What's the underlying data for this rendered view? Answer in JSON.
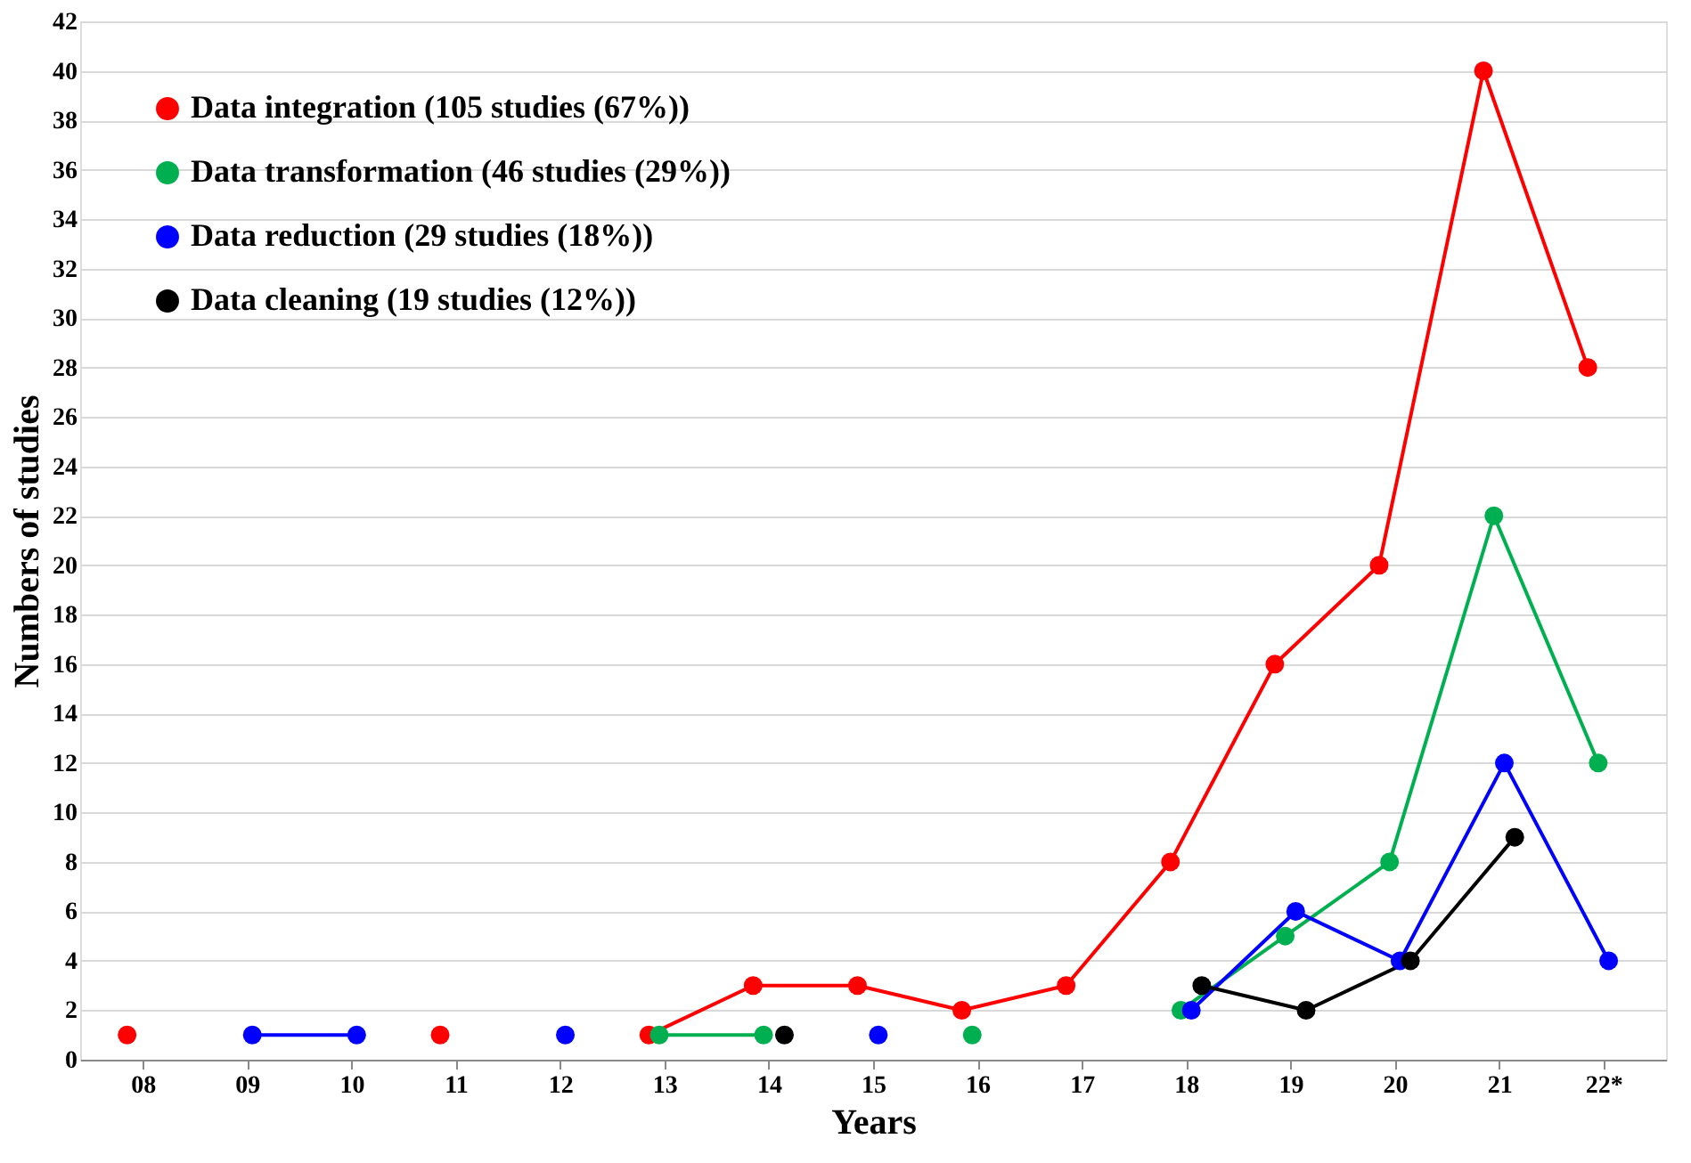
{
  "chart_data": {
    "type": "line",
    "xlabel": "Years",
    "ylabel": "Numbers of studies",
    "categories": [
      "08",
      "09",
      "10",
      "11",
      "12",
      "13",
      "14",
      "15",
      "16",
      "17",
      "18",
      "19",
      "20",
      "21",
      "22*"
    ],
    "ylim": [
      0,
      42
    ],
    "yticks": [
      0,
      2,
      4,
      6,
      8,
      10,
      12,
      14,
      16,
      18,
      20,
      22,
      24,
      26,
      28,
      30,
      32,
      34,
      36,
      38,
      40,
      42
    ],
    "grid": "y",
    "legend": "top left",
    "marker": "circle",
    "line_style": "solid",
    "series": [
      {
        "name": "Data integration (105 studies (67%))",
        "color": "#ff0000",
        "values": [
          1,
          null,
          null,
          1,
          null,
          1,
          3,
          3,
          2,
          3,
          8,
          16,
          20,
          40,
          28
        ]
      },
      {
        "name": "Data transformation (46 studies (29%))",
        "color": "#00b050",
        "values": [
          null,
          null,
          null,
          null,
          null,
          1,
          1,
          null,
          1,
          null,
          2,
          5,
          8,
          22,
          12
        ]
      },
      {
        "name": "Data reduction (29 studies (18%))",
        "color": "#0000ff",
        "values": [
          null,
          1,
          1,
          null,
          1,
          null,
          null,
          1,
          null,
          null,
          2,
          6,
          4,
          12,
          4
        ]
      },
      {
        "name": "Data cleaning (19 studies (12%))",
        "color": "#000000",
        "values": [
          null,
          null,
          null,
          null,
          null,
          null,
          1,
          null,
          null,
          null,
          3,
          2,
          4,
          9,
          null
        ]
      }
    ]
  }
}
